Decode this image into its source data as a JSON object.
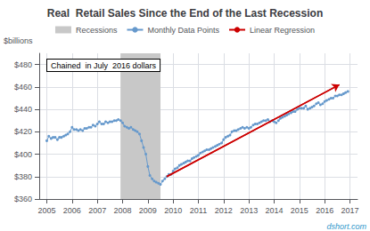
{
  "chart_data": {
    "type": "line",
    "title": "Real  Retail Sales Since the End of the Last Recession",
    "watermark": "dshort.com",
    "ylabel": "$billions",
    "annotation": "Chained  in July  2016 dollars",
    "grid": true,
    "legend": "top",
    "xlim": [
      2004.7,
      2017.3
    ],
    "xticks": [
      2005,
      2006,
      2007,
      2008,
      2009,
      2010,
      2011,
      2012,
      2013,
      2014,
      2015,
      2016,
      2017
    ],
    "ylim": [
      360,
      490
    ],
    "yticks": [
      {
        "value": 360,
        "label": "$360"
      },
      {
        "value": 380,
        "label": "$380"
      },
      {
        "value": 400,
        "label": "$400"
      },
      {
        "value": 420,
        "label": "$420"
      },
      {
        "value": 440,
        "label": "$440"
      },
      {
        "value": 460,
        "label": "$460"
      },
      {
        "value": 480,
        "label": "$480"
      }
    ],
    "recession": {
      "name": "Recessions",
      "start": 2007.917,
      "end": 2009.5,
      "color": "#c8c8c8"
    },
    "series": [
      {
        "name": "Monthly Data Points",
        "type": "line",
        "marker": "circle",
        "color": "#6699cc",
        "x": [
          2005.0,
          2005.08,
          2005.17,
          2005.25,
          2005.33,
          2005.42,
          2005.5,
          2005.58,
          2005.67,
          2005.75,
          2005.83,
          2005.92,
          2006.0,
          2006.08,
          2006.17,
          2006.25,
          2006.33,
          2006.42,
          2006.5,
          2006.58,
          2006.67,
          2006.75,
          2006.83,
          2006.92,
          2007.0,
          2007.08,
          2007.17,
          2007.25,
          2007.33,
          2007.42,
          2007.5,
          2007.58,
          2007.67,
          2007.75,
          2007.83,
          2007.92,
          2008.0,
          2008.08,
          2008.17,
          2008.25,
          2008.33,
          2008.42,
          2008.5,
          2008.58,
          2008.67,
          2008.75,
          2008.83,
          2008.92,
          2009.0,
          2009.08,
          2009.17,
          2009.25,
          2009.33,
          2009.42,
          2009.5,
          2009.58,
          2009.67,
          2009.75,
          2009.83,
          2009.92,
          2010.0,
          2010.08,
          2010.17,
          2010.25,
          2010.33,
          2010.42,
          2010.5,
          2010.58,
          2010.67,
          2010.75,
          2010.83,
          2010.92,
          2011.0,
          2011.08,
          2011.17,
          2011.25,
          2011.33,
          2011.42,
          2011.5,
          2011.58,
          2011.67,
          2011.75,
          2011.83,
          2011.92,
          2012.0,
          2012.08,
          2012.17,
          2012.25,
          2012.33,
          2012.42,
          2012.5,
          2012.58,
          2012.67,
          2012.75,
          2012.83,
          2012.92,
          2013.0,
          2013.08,
          2013.17,
          2013.25,
          2013.33,
          2013.42,
          2013.5,
          2013.58,
          2013.67,
          2013.75,
          2013.83,
          2013.92,
          2014.0,
          2014.08,
          2014.17,
          2014.25,
          2014.33,
          2014.42,
          2014.5,
          2014.58,
          2014.67,
          2014.75,
          2014.83,
          2014.92,
          2015.0,
          2015.08,
          2015.17,
          2015.25,
          2015.33,
          2015.42,
          2015.5,
          2015.58,
          2015.67,
          2015.75,
          2015.83,
          2015.92,
          2016.0,
          2016.08,
          2016.17,
          2016.25,
          2016.33,
          2016.42,
          2016.5,
          2016.58,
          2016.67,
          2016.75,
          2016.83,
          2016.92
        ],
        "values": [
          412,
          416,
          414,
          415,
          415,
          413,
          415,
          415,
          416,
          417,
          418,
          420,
          424,
          422,
          422,
          421,
          422,
          421,
          423,
          423,
          424,
          424,
          426,
          425,
          427,
          429,
          427,
          427,
          429,
          428,
          429,
          429,
          430,
          430,
          431,
          430,
          428,
          425,
          424,
          423,
          424,
          422,
          421,
          420,
          418,
          412,
          406,
          400,
          389,
          381,
          378,
          376,
          375,
          374,
          373,
          376,
          378,
          380,
          382,
          382,
          385,
          387,
          388,
          390,
          391,
          392,
          393,
          394,
          394,
          396,
          397,
          398,
          399,
          401,
          402,
          403,
          404,
          404,
          405,
          406,
          407,
          408,
          409,
          410,
          413,
          415,
          416,
          417,
          420,
          421,
          421,
          422,
          423,
          424,
          423,
          424,
          423,
          424,
          426,
          427,
          427,
          428,
          429,
          430,
          430,
          431,
          429,
          430,
          429,
          428,
          430,
          432,
          433,
          434,
          435,
          436,
          437,
          438,
          438,
          440,
          441,
          441,
          441,
          443,
          440,
          441,
          442,
          443,
          445,
          446,
          444,
          445,
          447,
          448,
          449,
          450,
          450,
          452,
          452,
          453,
          453,
          454,
          455,
          456
        ]
      },
      {
        "name": "Linear Regression",
        "type": "line",
        "marker": "arrow",
        "color": "#cc0000",
        "x": [
          2009.75,
          2016.58
        ],
        "values": [
          380,
          462
        ]
      }
    ]
  }
}
